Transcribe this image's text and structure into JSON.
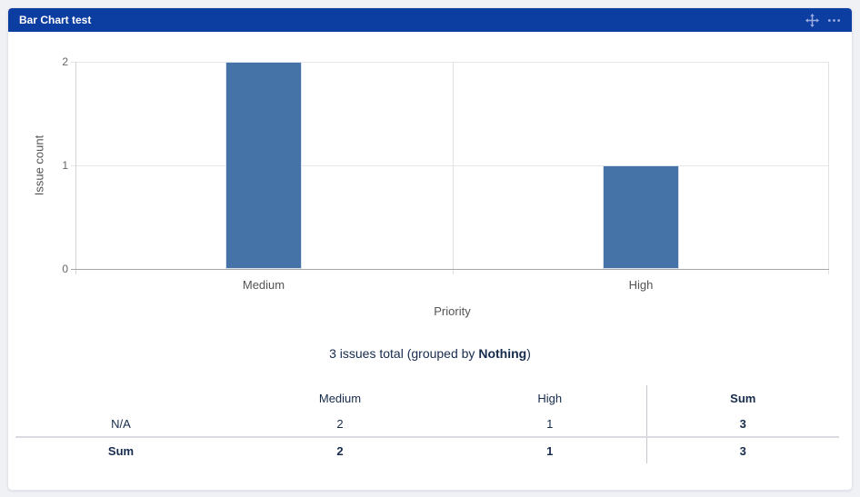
{
  "colors": {
    "header_bg": "#0c3da1",
    "bar": "#4572A7",
    "table_text": "#172B4D",
    "page_bg": "#f0f1f5"
  },
  "widget": {
    "title": "Bar Chart test",
    "header_icons": [
      {
        "name": "drag-move-icon"
      },
      {
        "name": "more-options-icon"
      }
    ]
  },
  "chart_data": {
    "type": "bar",
    "categories": [
      "Medium",
      "High"
    ],
    "values": [
      2,
      1
    ],
    "title": "",
    "xlabel": "Priority",
    "ylabel": "Issue count",
    "ylim": [
      0,
      2
    ],
    "yticks": [
      0,
      1,
      2
    ],
    "grid": true,
    "legend": "none",
    "bar_color": "#4572A7"
  },
  "summary": {
    "text_before_bold": "3 issues total (grouped by ",
    "bold_text": "Nothing",
    "text_after_bold": ")"
  },
  "table": {
    "columns": [
      "",
      "Medium",
      "High",
      "Sum"
    ],
    "rows": [
      {
        "label": "N/A",
        "values": [
          "2",
          "1",
          "3"
        ],
        "is_sum_row": false
      },
      {
        "label": "Sum",
        "values": [
          "2",
          "1",
          "3"
        ],
        "is_sum_row": true
      }
    ]
  }
}
